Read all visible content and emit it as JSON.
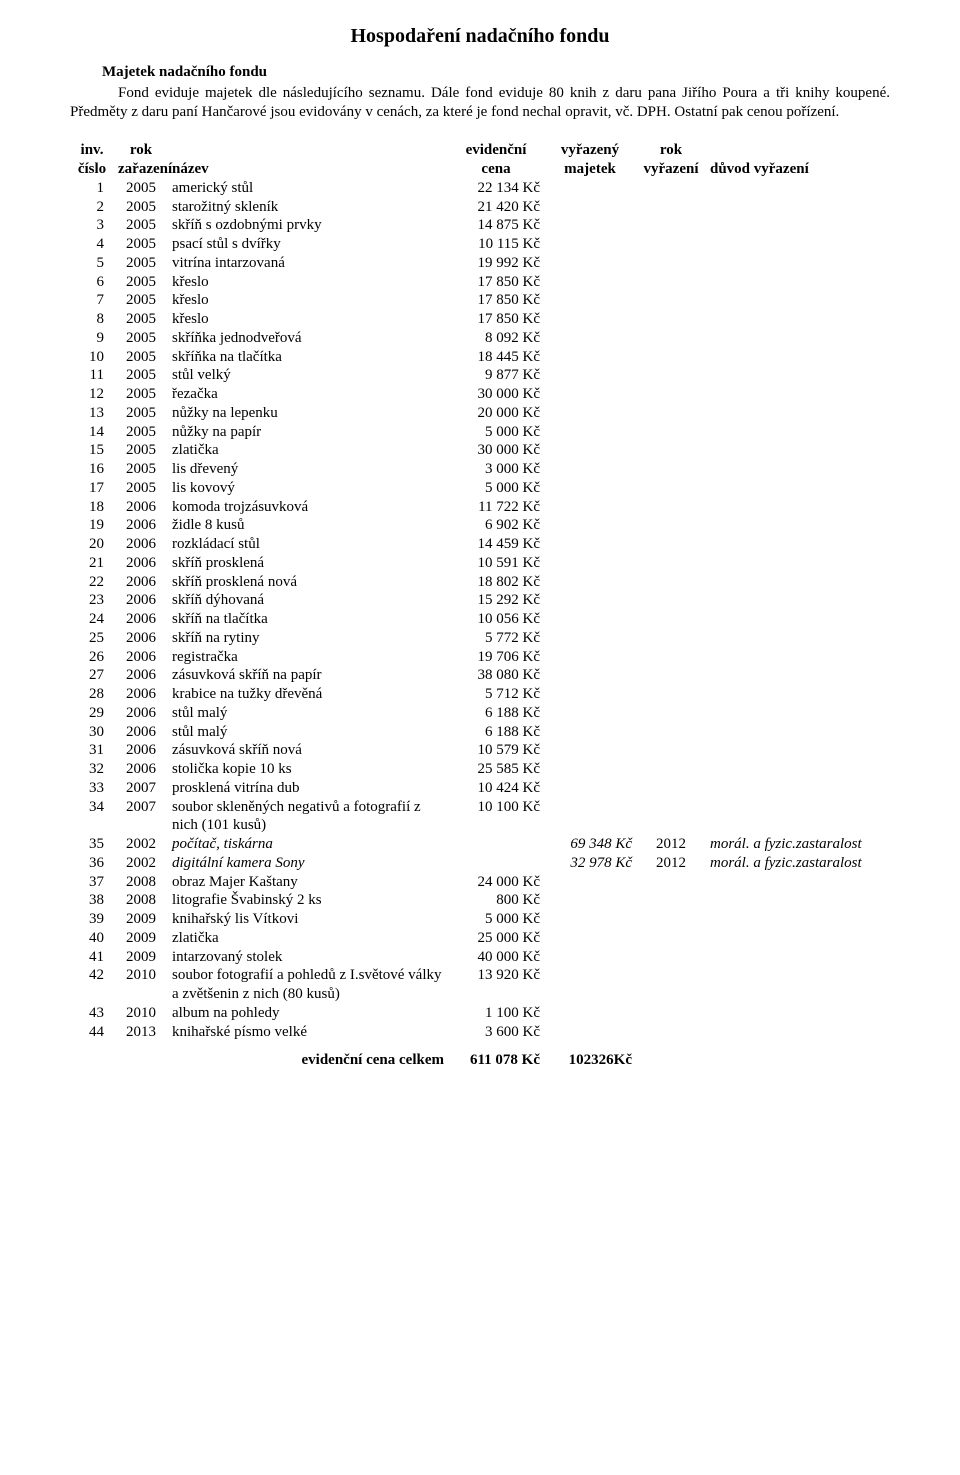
{
  "title": "Hospodaření nadačního fondu",
  "subhead": "Majetek nadačního fondu",
  "intro": "Fond eviduje majetek dle následujícího seznamu. Dále fond eviduje 80 knih z daru pana Jiřího Poura a tři knihy koupené. Předměty z daru paní Hančarové jsou evidovány v cenách, za které je fond nechal opravit, vč. DPH. Ostatní pak cenou pořízení.",
  "columns": {
    "num": [
      "inv.",
      "číslo"
    ],
    "year": [
      "rok",
      "zařazení"
    ],
    "name": [
      "",
      "název"
    ],
    "price": [
      "evidenční",
      "cena"
    ],
    "disposed": [
      "vyřazený",
      "majetek"
    ],
    "dyear": [
      "rok",
      "vyřazení"
    ],
    "reason": [
      "",
      "důvod vyřazení"
    ]
  },
  "rows": [
    {
      "n": "1",
      "y": "2005",
      "name": "americký stůl",
      "price": "22 134 Kč"
    },
    {
      "n": "2",
      "y": "2005",
      "name": "starožitný skleník",
      "price": "21 420 Kč"
    },
    {
      "n": "3",
      "y": "2005",
      "name": "skříň s ozdobnými prvky",
      "price": "14 875 Kč"
    },
    {
      "n": "4",
      "y": "2005",
      "name": "psací stůl s dvířky",
      "price": "10 115 Kč"
    },
    {
      "n": "5",
      "y": "2005",
      "name": "vitrína intarzovaná",
      "price": "19 992 Kč"
    },
    {
      "n": "6",
      "y": "2005",
      "name": "křeslo",
      "price": "17 850 Kč"
    },
    {
      "n": "7",
      "y": "2005",
      "name": "křeslo",
      "price": "17 850 Kč"
    },
    {
      "n": "8",
      "y": "2005",
      "name": "křeslo",
      "price": "17 850 Kč"
    },
    {
      "n": "9",
      "y": "2005",
      "name": "skříňka jednodveřová",
      "price": "8 092 Kč"
    },
    {
      "n": "10",
      "y": "2005",
      "name": "skříňka na tlačítka",
      "price": "18 445 Kč"
    },
    {
      "n": "11",
      "y": "2005",
      "name": "stůl velký",
      "price": "9 877 Kč"
    },
    {
      "n": "12",
      "y": "2005",
      "name": "řezačka",
      "price": "30 000 Kč"
    },
    {
      "n": "13",
      "y": "2005",
      "name": "nůžky na lepenku",
      "price": "20 000 Kč"
    },
    {
      "n": "14",
      "y": "2005",
      "name": "nůžky na papír",
      "price": "5 000 Kč"
    },
    {
      "n": "15",
      "y": "2005",
      "name": "zlatička",
      "price": "30 000 Kč"
    },
    {
      "n": "16",
      "y": "2005",
      "name": "lis dřevený",
      "price": "3 000 Kč"
    },
    {
      "n": "17",
      "y": "2005",
      "name": "lis kovový",
      "price": "5 000 Kč"
    },
    {
      "n": "18",
      "y": "2006",
      "name": "komoda trojzásuvková",
      "price": "11 722 Kč"
    },
    {
      "n": "19",
      "y": "2006",
      "name": "židle 8 kusů",
      "price": "6 902 Kč"
    },
    {
      "n": "20",
      "y": "2006",
      "name": "rozkládací stůl",
      "price": "14 459 Kč"
    },
    {
      "n": "21",
      "y": "2006",
      "name": "skříň prosklená",
      "price": "10 591 Kč"
    },
    {
      "n": "22",
      "y": "2006",
      "name": "skříň prosklená nová",
      "price": "18 802 Kč"
    },
    {
      "n": "23",
      "y": "2006",
      "name": "skříň dýhovaná",
      "price": "15 292 Kč"
    },
    {
      "n": "24",
      "y": "2006",
      "name": "skříň na tlačítka",
      "price": "10 056 Kč"
    },
    {
      "n": "25",
      "y": "2006",
      "name": "skříň na rytiny",
      "price": "5 772 Kč"
    },
    {
      "n": "26",
      "y": "2006",
      "name": "registračka",
      "price": "19 706 Kč"
    },
    {
      "n": "27",
      "y": "2006",
      "name": "zásuvková skříň na papír",
      "price": "38 080 Kč"
    },
    {
      "n": "28",
      "y": "2006",
      "name": "krabice na tužky dřevěná",
      "price": "5 712 Kč"
    },
    {
      "n": "29",
      "y": "2006",
      "name": "stůl malý",
      "price": "6 188 Kč"
    },
    {
      "n": "30",
      "y": "2006",
      "name": "stůl malý",
      "price": "6 188 Kč"
    },
    {
      "n": "31",
      "y": "2006",
      "name": "zásuvková skříň nová",
      "price": "10 579 Kč"
    },
    {
      "n": "32",
      "y": "2006",
      "name": "stolička kopie 10 ks",
      "price": "25 585 Kč"
    },
    {
      "n": "33",
      "y": "2007",
      "name": "prosklená vitrína dub",
      "price": "10 424 Kč"
    },
    {
      "n": "34",
      "y": "2007",
      "name": "soubor skleněných negativů a fotografií z nich (101 kusů)",
      "price": "10 100 Kč"
    },
    {
      "n": "35",
      "y": "2002",
      "name": "počítač, tiskárna",
      "italicName": true,
      "disposed": "69 348 Kč",
      "dyear": "2012",
      "reason": "morál. a fyzic.zastaralost"
    },
    {
      "n": "36",
      "y": "2002",
      "name": "digitální kamera Sony",
      "italicName": true,
      "disposed": "32 978 Kč",
      "dyear": "2012",
      "reason": "morál. a fyzic.zastaralost"
    },
    {
      "n": "37",
      "y": "2008",
      "name": "obraz Majer Kaštany",
      "price": "24 000 Kč"
    },
    {
      "n": "38",
      "y": "2008",
      "name": "litografie Švabinský 2 ks",
      "price": "800 Kč"
    },
    {
      "n": "39",
      "y": "2009",
      "name": "knihařský lis Vítkovi",
      "price": "5 000 Kč"
    },
    {
      "n": "40",
      "y": "2009",
      "name": "zlatička",
      "price": "25 000 Kč"
    },
    {
      "n": "41",
      "y": "2009",
      "name": "intarzovaný stolek",
      "price": "40 000 Kč"
    },
    {
      "n": "42",
      "y": "2010",
      "name": "soubor fotografií a pohledů z I.světové války a zvětšenin z nich (80 kusů)",
      "price": "13 920 Kč"
    },
    {
      "n": "43",
      "y": "2010",
      "name": "album na pohledy",
      "price": "1 100 Kč"
    },
    {
      "n": "44",
      "y": "2013",
      "name": "knihařské písmo velké",
      "price": "3 600 Kč"
    }
  ],
  "totals": {
    "label": "evidenční cena celkem",
    "price": "611 078 Kč",
    "disposed": "102326Kč"
  }
}
